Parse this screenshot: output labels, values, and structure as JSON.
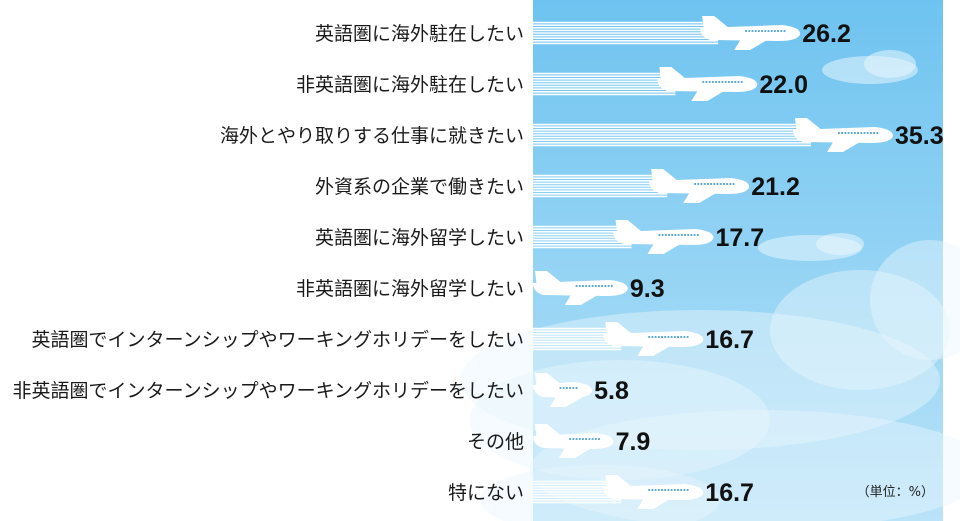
{
  "chart_data": {
    "type": "bar",
    "orientation": "horizontal",
    "categories": [
      "英語圏に海外駐在したい",
      "非英語圏に海外駐在したい",
      "海外とやり取りする仕事に就きたい",
      "外資系の企業で働きたい",
      "英語圏に海外留学したい",
      "非英語圏に海外留学したい",
      "英語圏でインターンシップやワーキングホリデーをしたい",
      "非英語圏でインターンシップやワーキングホリデーをしたい",
      "その他",
      "特にない"
    ],
    "values": [
      26.2,
      22.0,
      35.3,
      21.2,
      17.7,
      9.3,
      16.7,
      5.8,
      7.9,
      16.7
    ],
    "value_labels": [
      "26.2",
      "22.0",
      "35.3",
      "21.2",
      "17.7",
      "9.3",
      "16.7",
      "5.8",
      "7.9",
      "16.7"
    ],
    "unit_note": "（単位：%）",
    "xlim": [
      0,
      35.3
    ],
    "grid": false,
    "legend": "none",
    "colors": {
      "sky_top": "#6ec3f0",
      "sky_bottom": "#b9e3f8",
      "cloud": "#e8f6fd",
      "plane": "#ffffff",
      "plane_window": "#5aa7d8"
    },
    "bar_icon": "airplane-icon"
  }
}
